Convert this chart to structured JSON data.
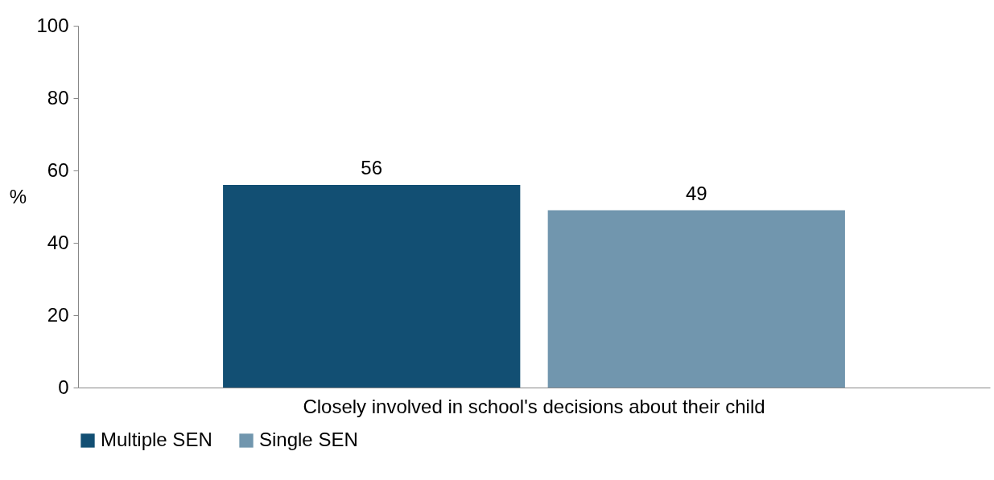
{
  "chart_data": {
    "type": "bar",
    "categories": [
      "Closely involved in school's decisions about their child"
    ],
    "ylabel": "%",
    "ylim": [
      0,
      100
    ],
    "yticks": [
      0,
      20,
      40,
      60,
      80,
      100
    ],
    "grid": false,
    "legend": "bottom",
    "data_labels": true,
    "series": [
      {
        "name": "Multiple SEN",
        "color": "#124f73",
        "values": [
          56
        ]
      },
      {
        "name": "Single SEN",
        "color": "#7196ae",
        "values": [
          49
        ]
      }
    ]
  }
}
